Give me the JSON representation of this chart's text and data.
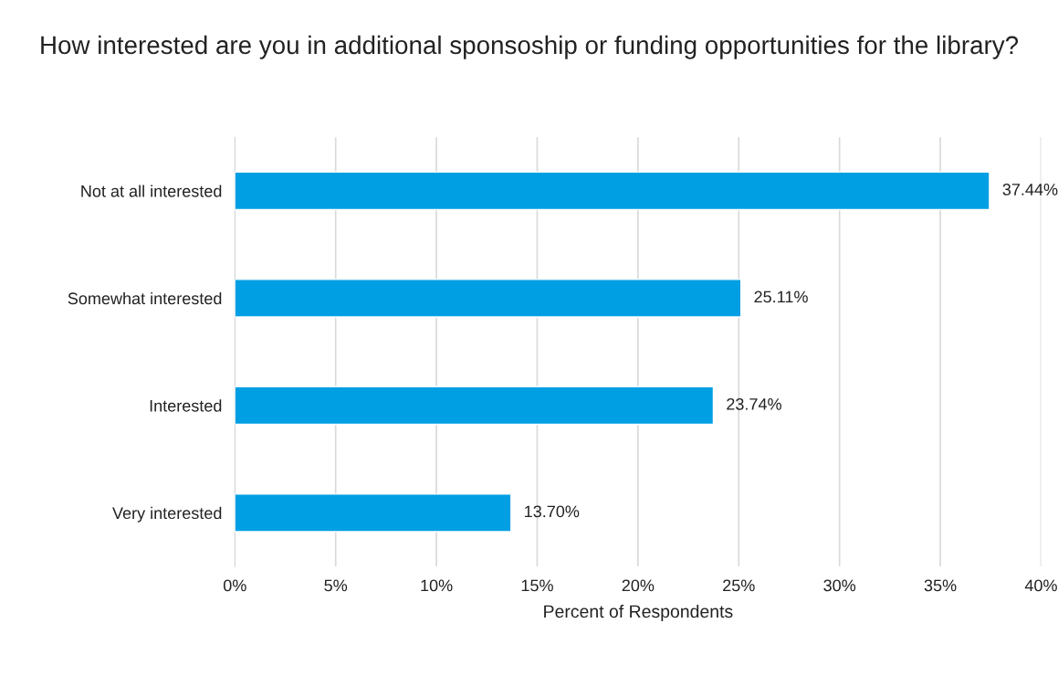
{
  "chart_data": {
    "type": "bar",
    "orientation": "horizontal",
    "title": "How interested are you in additional sponsoship or funding opportunities for the library?",
    "xlabel": "Percent of Respondents",
    "categories": [
      "Not at all interested",
      "Somewhat interested",
      "Interested",
      "Very interested"
    ],
    "values": [
      37.44,
      25.11,
      23.74,
      13.7
    ],
    "value_labels": [
      "37.44%",
      "25.11%",
      "23.74%",
      "13.70%"
    ],
    "color": "#009fe3",
    "xlim": [
      0,
      40
    ],
    "xticks": [
      {
        "value": 0,
        "label": "0%"
      },
      {
        "value": 5,
        "label": "5%"
      },
      {
        "value": 10,
        "label": "10%"
      },
      {
        "value": 15,
        "label": "15%"
      },
      {
        "value": 20,
        "label": "20%"
      },
      {
        "value": 25,
        "label": "25%"
      },
      {
        "value": 30,
        "label": "30%"
      },
      {
        "value": 35,
        "label": "35%"
      },
      {
        "value": 40,
        "label": "40%"
      }
    ],
    "grid": "x"
  }
}
